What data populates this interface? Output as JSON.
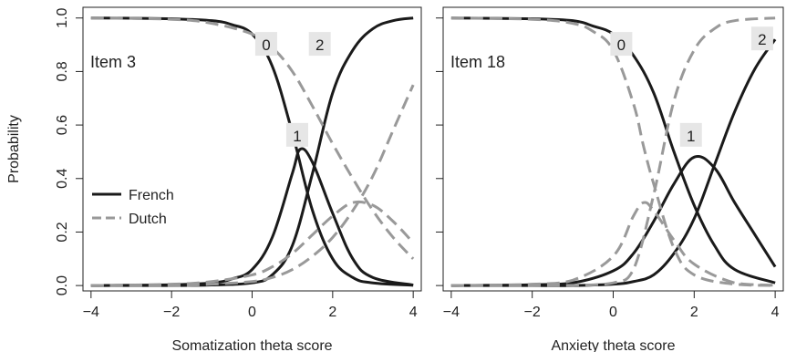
{
  "chart_data": [
    {
      "type": "line",
      "item_label": "Item 3",
      "xlabel": "Somatization theta score",
      "ylabel": "Probability",
      "xlim": [
        -4.2,
        4.2
      ],
      "ylim": [
        -0.02,
        1.04
      ],
      "x_ticks": [
        -4,
        -2,
        0,
        2,
        4
      ],
      "x_tick_labels": [
        "−4",
        "−2",
        "0",
        "2",
        "4"
      ],
      "y_ticks": [
        0.0,
        0.2,
        0.4,
        0.6,
        0.8,
        1.0
      ],
      "y_tick_labels": [
        "0.0",
        "0.2",
        "0.4",
        "0.6",
        "0.8",
        "1.0"
      ],
      "grid": false,
      "legend": {
        "placement": "middle-left",
        "entries": [
          "French",
          "Dutch"
        ]
      },
      "series": [
        {
          "name": "French",
          "group": "French",
          "category": "0",
          "x": [
            -4,
            -3,
            -2,
            -1,
            -0.5,
            0,
            0.5,
            1,
            1.5,
            2,
            2.5,
            3,
            4
          ],
          "y": [
            1.0,
            0.999,
            0.997,
            0.99,
            0.975,
            0.94,
            0.82,
            0.57,
            0.28,
            0.1,
            0.03,
            0.01,
            0.001
          ]
        },
        {
          "name": "French",
          "group": "French",
          "category": "1",
          "x": [
            -4,
            -2,
            -1,
            -0.5,
            0,
            0.5,
            1,
            1.2,
            1.5,
            2,
            2.5,
            3,
            4
          ],
          "y": [
            0.0,
            0.003,
            0.01,
            0.025,
            0.06,
            0.18,
            0.42,
            0.51,
            0.46,
            0.27,
            0.1,
            0.03,
            0.002
          ]
        },
        {
          "name": "French",
          "group": "French",
          "category": "2",
          "x": [
            -4,
            -2,
            -1,
            0,
            0.5,
            1,
            1.5,
            2,
            2.5,
            3,
            3.5,
            4
          ],
          "y": [
            0.0,
            0.0,
            0.002,
            0.01,
            0.04,
            0.15,
            0.42,
            0.72,
            0.88,
            0.96,
            0.99,
            1.0
          ]
        },
        {
          "name": "Dutch",
          "group": "Dutch",
          "category": "0",
          "x": [
            -4,
            -2,
            -1,
            0,
            0.5,
            1,
            1.5,
            2,
            2.5,
            3,
            3.5,
            4
          ],
          "y": [
            1.0,
            0.995,
            0.98,
            0.94,
            0.89,
            0.8,
            0.67,
            0.53,
            0.4,
            0.28,
            0.18,
            0.1
          ]
        },
        {
          "name": "Dutch",
          "group": "Dutch",
          "category": "1",
          "x": [
            -4,
            -2,
            -1,
            0,
            0.5,
            1,
            1.5,
            2,
            2.5,
            3,
            3.5,
            4
          ],
          "y": [
            0.0,
            0.005,
            0.015,
            0.04,
            0.07,
            0.12,
            0.19,
            0.26,
            0.31,
            0.3,
            0.24,
            0.16
          ]
        },
        {
          "name": "Dutch",
          "group": "Dutch",
          "category": "2",
          "x": [
            -4,
            -2,
            -1,
            0,
            0.5,
            1,
            1.5,
            2,
            2.5,
            3,
            3.5,
            4
          ],
          "y": [
            0.0,
            0.0,
            0.005,
            0.015,
            0.03,
            0.06,
            0.11,
            0.18,
            0.28,
            0.41,
            0.58,
            0.75
          ]
        }
      ],
      "category_labels": [
        {
          "text": "0",
          "x": 0.35,
          "y": 0.9
        },
        {
          "text": "1",
          "x": 1.12,
          "y": 0.56
        },
        {
          "text": "2",
          "x": 1.68,
          "y": 0.9
        }
      ]
    },
    {
      "type": "line",
      "item_label": "Item 18",
      "xlabel": "Anxiety theta score",
      "ylabel": "",
      "xlim": [
        -4.2,
        4.2
      ],
      "ylim": [
        -0.02,
        1.04
      ],
      "x_ticks": [
        -4,
        -2,
        0,
        2,
        4
      ],
      "x_tick_labels": [
        "−4",
        "−2",
        "0",
        "2",
        "4"
      ],
      "y_ticks": [
        0.0,
        0.2,
        0.4,
        0.6,
        0.8,
        1.0
      ],
      "y_tick_labels": [],
      "grid": false,
      "legend": null,
      "series": [
        {
          "name": "French",
          "group": "French",
          "category": "0",
          "x": [
            -4,
            -2,
            -1,
            -0.5,
            0,
            0.5,
            1,
            1.5,
            2,
            2.5,
            3,
            4
          ],
          "y": [
            1.0,
            0.997,
            0.99,
            0.97,
            0.94,
            0.86,
            0.72,
            0.5,
            0.3,
            0.15,
            0.06,
            0.01
          ]
        },
        {
          "name": "French",
          "group": "French",
          "category": "1",
          "x": [
            -4,
            -2,
            -1,
            0,
            0.5,
            1,
            1.5,
            2,
            2.5,
            3,
            3.5,
            4
          ],
          "y": [
            0.0,
            0.003,
            0.01,
            0.055,
            0.12,
            0.24,
            0.38,
            0.48,
            0.44,
            0.31,
            0.19,
            0.07
          ]
        },
        {
          "name": "French",
          "group": "French",
          "category": "2",
          "x": [
            -4,
            -2,
            -1,
            0,
            0.5,
            1,
            1.5,
            2,
            2.5,
            3,
            3.5,
            4
          ],
          "y": [
            0.0,
            0.0,
            0.0,
            0.005,
            0.015,
            0.04,
            0.12,
            0.25,
            0.45,
            0.65,
            0.81,
            0.92
          ]
        },
        {
          "name": "Dutch",
          "group": "Dutch",
          "category": "0",
          "x": [
            -4,
            -2,
            -1,
            -0.5,
            0,
            0.5,
            0.75,
            1,
            1.5,
            2,
            3,
            4
          ],
          "y": [
            1.0,
            0.995,
            0.98,
            0.95,
            0.88,
            0.68,
            0.52,
            0.38,
            0.14,
            0.04,
            0.005,
            0.0
          ]
        },
        {
          "name": "Dutch",
          "group": "Dutch",
          "category": "1",
          "x": [
            -4,
            -2,
            -1,
            0,
            0.5,
            0.75,
            1,
            1.5,
            2,
            3,
            4
          ],
          "y": [
            0.0,
            0.005,
            0.02,
            0.11,
            0.26,
            0.31,
            0.28,
            0.17,
            0.08,
            0.01,
            0.001
          ]
        },
        {
          "name": "Dutch",
          "group": "Dutch",
          "category": "2",
          "x": [
            -4,
            -2,
            -1,
            0,
            0.5,
            1,
            1.5,
            2,
            2.5,
            3,
            4
          ],
          "y": [
            0.0,
            0.0,
            0.001,
            0.01,
            0.06,
            0.34,
            0.69,
            0.88,
            0.96,
            0.99,
            1.0
          ]
        }
      ],
      "category_labels": [
        {
          "text": "0",
          "x": 0.2,
          "y": 0.9
        },
        {
          "text": "1",
          "x": 1.92,
          "y": 0.56
        },
        {
          "text": "2",
          "x": 3.68,
          "y": 0.92
        }
      ]
    }
  ],
  "colors": {
    "french": "#1a1a1a",
    "dutch": "#999999",
    "label_box": "#e6e6e6"
  }
}
